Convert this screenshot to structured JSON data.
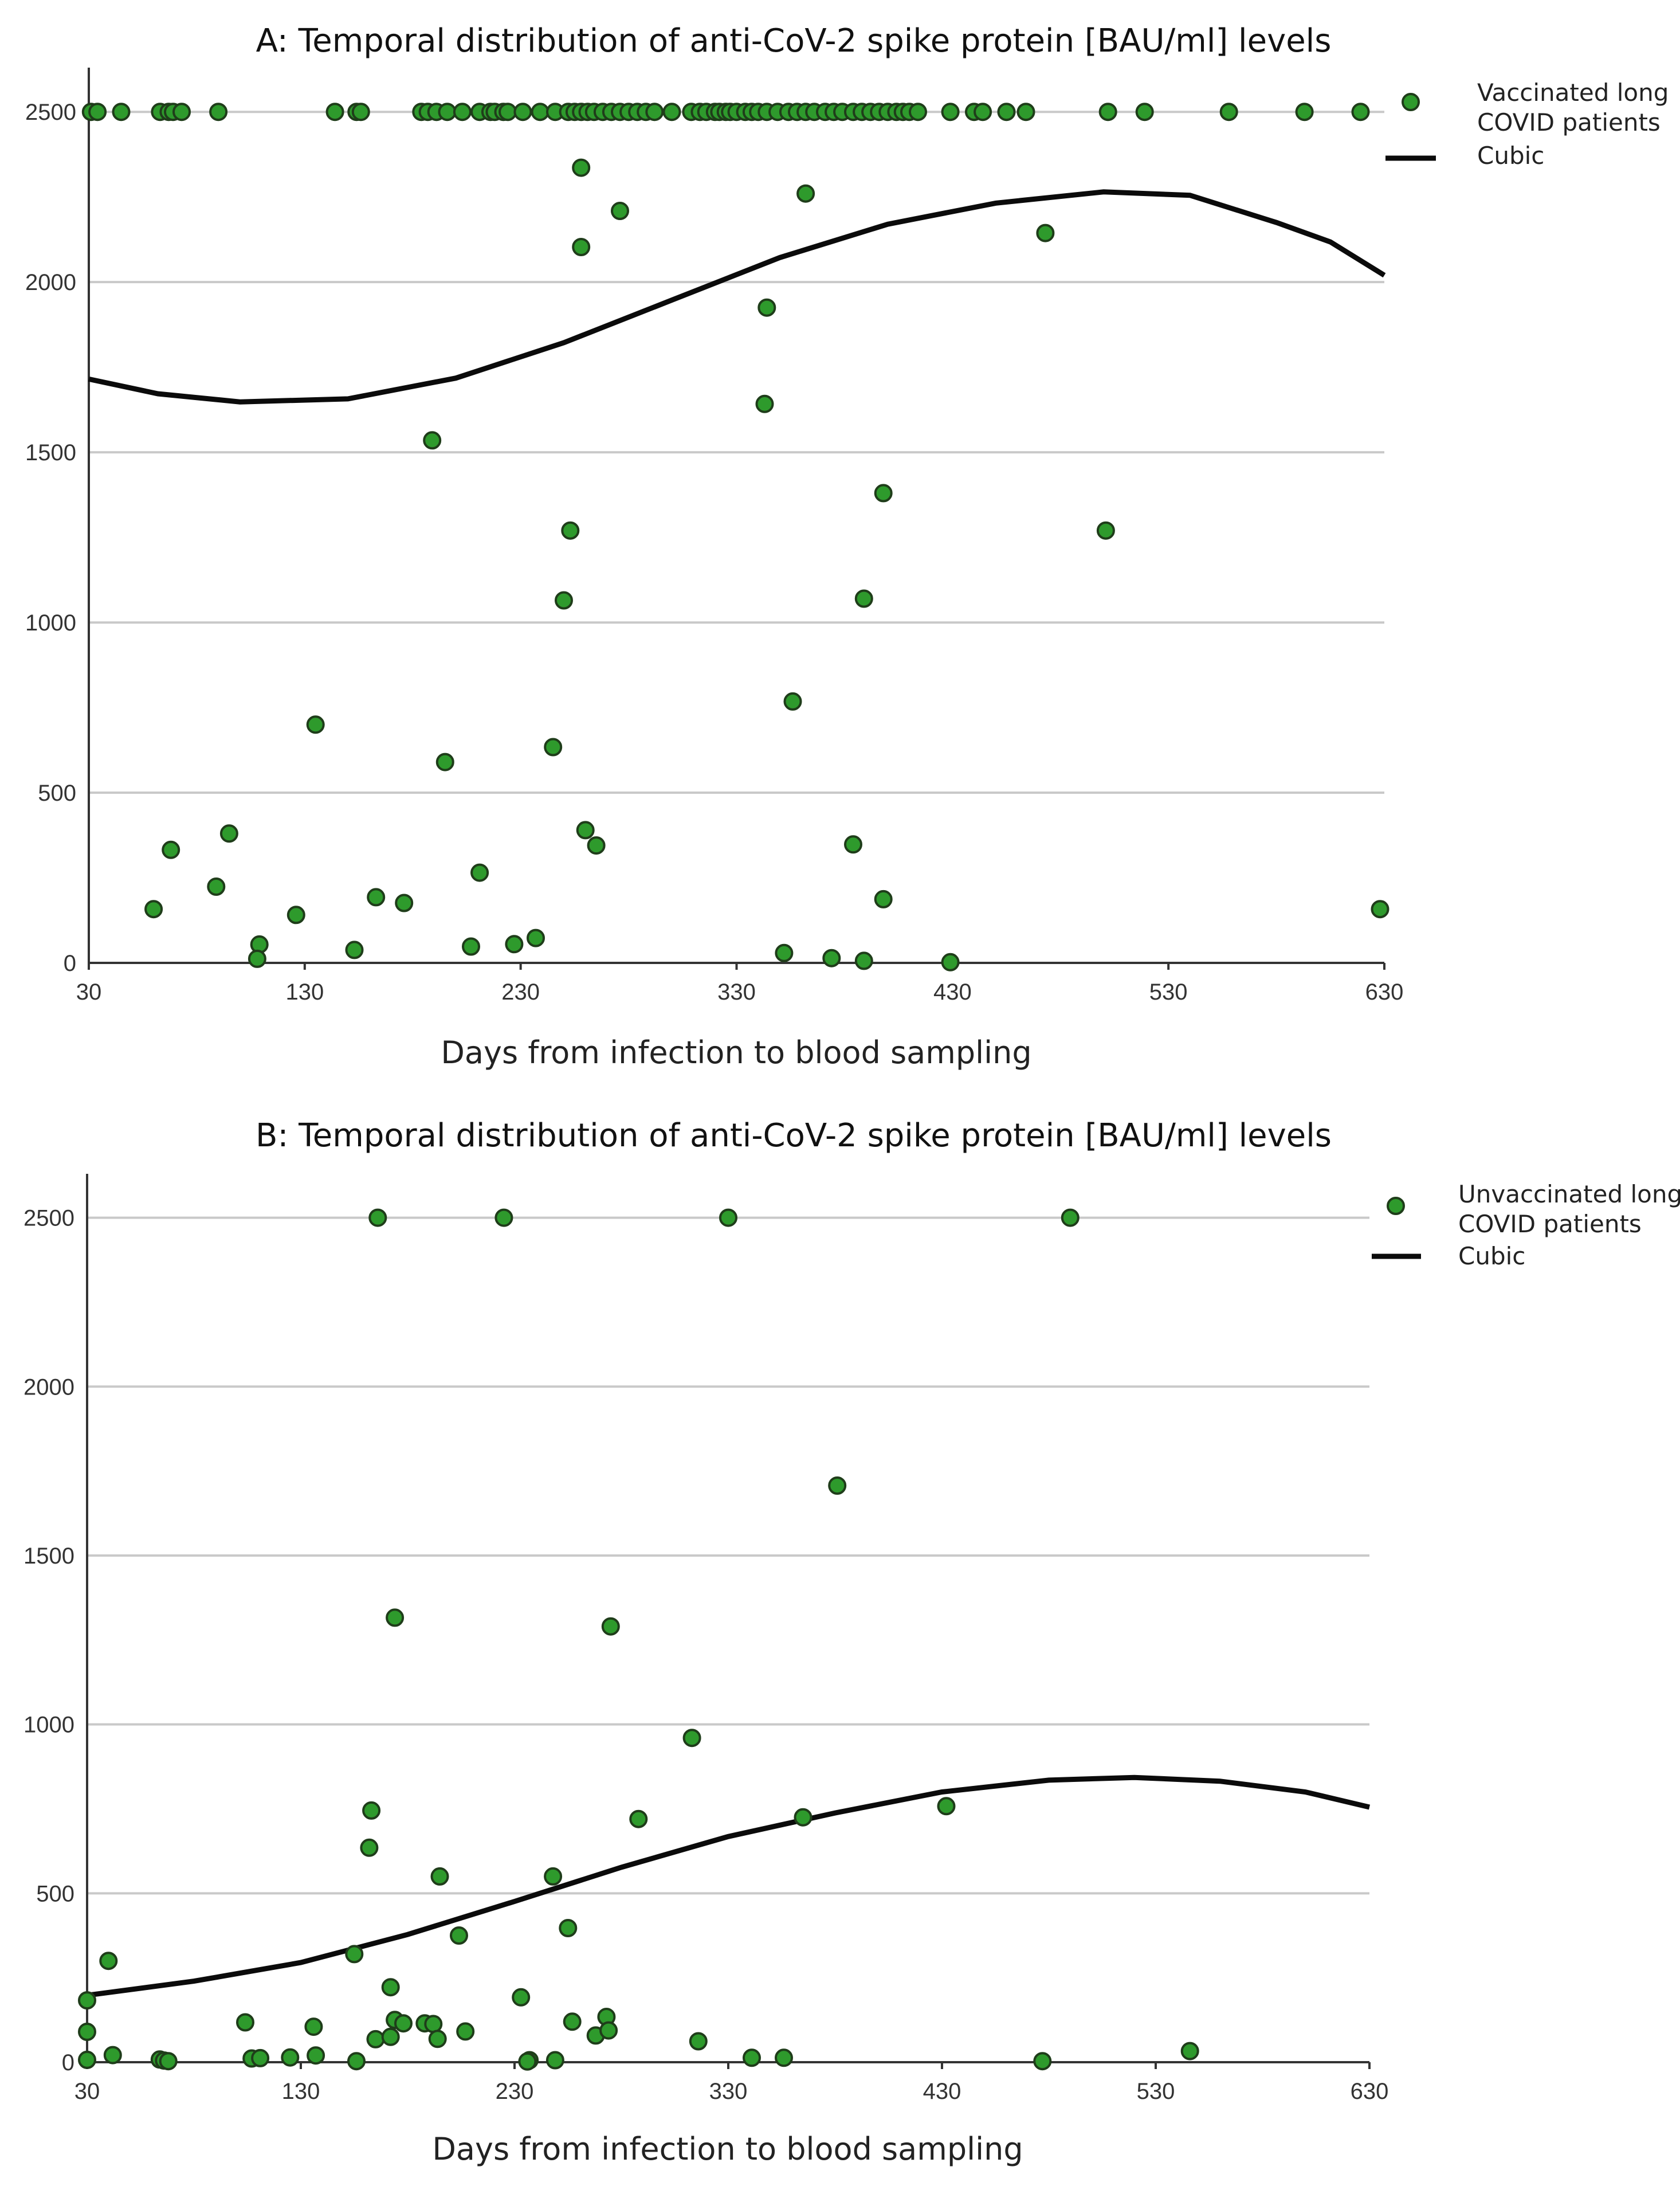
{
  "chart_data": [
    {
      "type": "scatter",
      "title": "A: Temporal distribution of anti-CoV-2 spike protein [BAU/ml] levels",
      "xlabel": "Days from infection to blood sampling",
      "ylabel": "",
      "xlim": [
        30,
        630
      ],
      "ylim": [
        0,
        2630
      ],
      "x_ticks": [
        "30",
        "130",
        "230",
        "330",
        "430",
        "530",
        "630"
      ],
      "y_ticks": [
        "0",
        "500",
        "1000",
        "1500",
        "2000",
        "2500"
      ],
      "grid": "horizontal",
      "legend_position": "top-right",
      "series": [
        {
          "name": "Vaccinated long COVID patients",
          "color": "#2e9a2c",
          "points": [
            [
              31,
              2500
            ],
            [
              34,
              2500
            ],
            [
              45,
              2500
            ],
            [
              63,
              2500
            ],
            [
              67,
              2500
            ],
            [
              69,
              2500
            ],
            [
              73,
              2500
            ],
            [
              90,
              2500
            ],
            [
              144,
              2500
            ],
            [
              154,
              2500
            ],
            [
              156,
              2500
            ],
            [
              184,
              2500
            ],
            [
              187,
              2500
            ],
            [
              191,
              2500
            ],
            [
              196,
              2500
            ],
            [
              203,
              2500
            ],
            [
              211,
              2500
            ],
            [
              216,
              2500
            ],
            [
              218,
              2500
            ],
            [
              222,
              2500
            ],
            [
              224,
              2500
            ],
            [
              231,
              2500
            ],
            [
              239,
              2500
            ],
            [
              246,
              2500
            ],
            [
              252,
              2500
            ],
            [
              255,
              2500
            ],
            [
              258,
              2500
            ],
            [
              261,
              2500
            ],
            [
              264,
              2500
            ],
            [
              268,
              2500
            ],
            [
              272,
              2500
            ],
            [
              276,
              2500
            ],
            [
              280,
              2500
            ],
            [
              284,
              2500
            ],
            [
              288,
              2500
            ],
            [
              292,
              2500
            ],
            [
              300,
              2500
            ],
            [
              309,
              2500
            ],
            [
              313,
              2500
            ],
            [
              316,
              2500
            ],
            [
              320,
              2500
            ],
            [
              322,
              2500
            ],
            [
              325,
              2500
            ],
            [
              327,
              2500
            ],
            [
              330,
              2500
            ],
            [
              334,
              2500
            ],
            [
              337,
              2500
            ],
            [
              340,
              2500
            ],
            [
              344,
              2500
            ],
            [
              349,
              2500
            ],
            [
              354,
              2500
            ],
            [
              358,
              2500
            ],
            [
              362,
              2500
            ],
            [
              366,
              2500
            ],
            [
              371,
              2500
            ],
            [
              375,
              2500
            ],
            [
              379,
              2500
            ],
            [
              384,
              2500
            ],
            [
              388,
              2500
            ],
            [
              392,
              2500
            ],
            [
              396,
              2500
            ],
            [
              400,
              2500
            ],
            [
              404,
              2500
            ],
            [
              407,
              2500
            ],
            [
              410,
              2500
            ],
            [
              414,
              2500
            ],
            [
              429,
              2500
            ],
            [
              440,
              2500
            ],
            [
              444,
              2500
            ],
            [
              455,
              2500
            ],
            [
              464,
              2500
            ],
            [
              502,
              2500
            ],
            [
              519,
              2500
            ],
            [
              558,
              2500
            ],
            [
              593,
              2500
            ],
            [
              619,
              2500
            ],
            [
              258,
              2336
            ],
            [
              362,
              2260
            ],
            [
              276,
              2209
            ],
            [
              258,
              2103
            ],
            [
              473,
              2144
            ],
            [
              344,
              1925
            ],
            [
              343,
              1642
            ],
            [
              189,
              1535
            ],
            [
              398,
              1380
            ],
            [
              253,
              1270
            ],
            [
              501,
              1270
            ],
            [
              250,
              1065
            ],
            [
              389,
              1070
            ],
            [
              356,
              768
            ],
            [
              135,
              700
            ],
            [
              195,
              590
            ],
            [
              245,
              634
            ],
            [
              95,
              380
            ],
            [
              260,
              390
            ],
            [
              265,
              345
            ],
            [
              384,
              348
            ],
            [
              68,
              332
            ],
            [
              89,
              224
            ],
            [
              211,
              265
            ],
            [
              60,
              158
            ],
            [
              163,
              193
            ],
            [
              176,
              176
            ],
            [
              398,
              187
            ],
            [
              126,
              141
            ],
            [
              109,
              54
            ],
            [
              108,
              12
            ],
            [
              237,
              73
            ],
            [
              227,
              55
            ],
            [
              207,
              48
            ],
            [
              153,
              38
            ],
            [
              352,
              29
            ],
            [
              374,
              14
            ],
            [
              389,
              6
            ],
            [
              429,
              2
            ],
            [
              628,
              158
            ]
          ]
        },
        {
          "name": "Cubic",
          "color": "#0b0b0b",
          "curve": [
            [
              30,
              1715
            ],
            [
              62,
              1672
            ],
            [
              100,
              1648
            ],
            [
              150,
              1657
            ],
            [
              200,
              1718
            ],
            [
              250,
              1822
            ],
            [
              300,
              1947
            ],
            [
              350,
              2072
            ],
            [
              400,
              2170
            ],
            [
              450,
              2232
            ],
            [
              500,
              2265
            ],
            [
              540,
              2255
            ],
            [
              580,
              2175
            ],
            [
              605,
              2118
            ],
            [
              630,
              2020
            ]
          ]
        }
      ]
    },
    {
      "type": "scatter",
      "title": "B: Temporal distribution of anti-CoV-2 spike protein [BAU/ml] levels",
      "xlabel": "Days from infection to blood sampling",
      "ylabel": "",
      "xlim": [
        30,
        630
      ],
      "ylim": [
        0,
        2630
      ],
      "x_ticks": [
        "30",
        "130",
        "230",
        "330",
        "430",
        "530",
        "630"
      ],
      "y_ticks": [
        "0",
        "500",
        "1000",
        "1500",
        "2000",
        "2500"
      ],
      "grid": "horizontal",
      "legend_position": "top-right",
      "series": [
        {
          "name": "Unvaccinated long COVID patients",
          "color": "#2e9a2c",
          "points": [
            [
              166,
              2500
            ],
            [
              225,
              2500
            ],
            [
              330,
              2500
            ],
            [
              490,
              2500
            ],
            [
              381,
              1707
            ],
            [
              174,
              1316
            ],
            [
              275,
              1290
            ],
            [
              313,
              960
            ],
            [
              163,
              745
            ],
            [
              288,
              720
            ],
            [
              365,
              725
            ],
            [
              432,
              758
            ],
            [
              162,
              635
            ],
            [
              195,
              550
            ],
            [
              248,
              550
            ],
            [
              204,
              375
            ],
            [
              255,
              397
            ],
            [
              155,
              320
            ],
            [
              172,
              222
            ],
            [
              40,
              300
            ],
            [
              42,
              21
            ],
            [
              19,
              183
            ],
            [
              15,
              90
            ],
            [
              104,
              118
            ],
            [
              136,
              105
            ],
            [
              174,
              125
            ],
            [
              178,
              115
            ],
            [
              188,
              115
            ],
            [
              192,
              113
            ],
            [
              194,
              69
            ],
            [
              207,
              91
            ],
            [
              165,
              68
            ],
            [
              172,
              75
            ],
            [
              233,
              192
            ],
            [
              257,
              120
            ],
            [
              268,
              79
            ],
            [
              273,
              134
            ],
            [
              274,
              94
            ],
            [
              316,
              62
            ],
            [
              107,
              11
            ],
            [
              111,
              12
            ],
            [
              125,
              14
            ],
            [
              137,
              20
            ],
            [
              156,
              3
            ],
            [
              237,
              6
            ],
            [
              236,
              2
            ],
            [
              249,
              6
            ],
            [
              341,
              13
            ],
            [
              356,
              13
            ],
            [
              64,
              8
            ],
            [
              66,
              5
            ],
            [
              68,
              3
            ],
            [
              477,
              3
            ],
            [
              546,
              33
            ],
            [
              1,
              7
            ]
          ]
        },
        {
          "name": "Cubic",
          "color": "#0b0b0b",
          "curve": [
            [
              30,
              198
            ],
            [
              80,
              240
            ],
            [
              130,
              295
            ],
            [
              180,
              378
            ],
            [
              230,
              476
            ],
            [
              280,
              577
            ],
            [
              330,
              668
            ],
            [
              380,
              738
            ],
            [
              430,
              800
            ],
            [
              480,
              835
            ],
            [
              520,
              843
            ],
            [
              560,
              832
            ],
            [
              600,
              800
            ],
            [
              630,
              755
            ]
          ]
        }
      ]
    }
  ]
}
